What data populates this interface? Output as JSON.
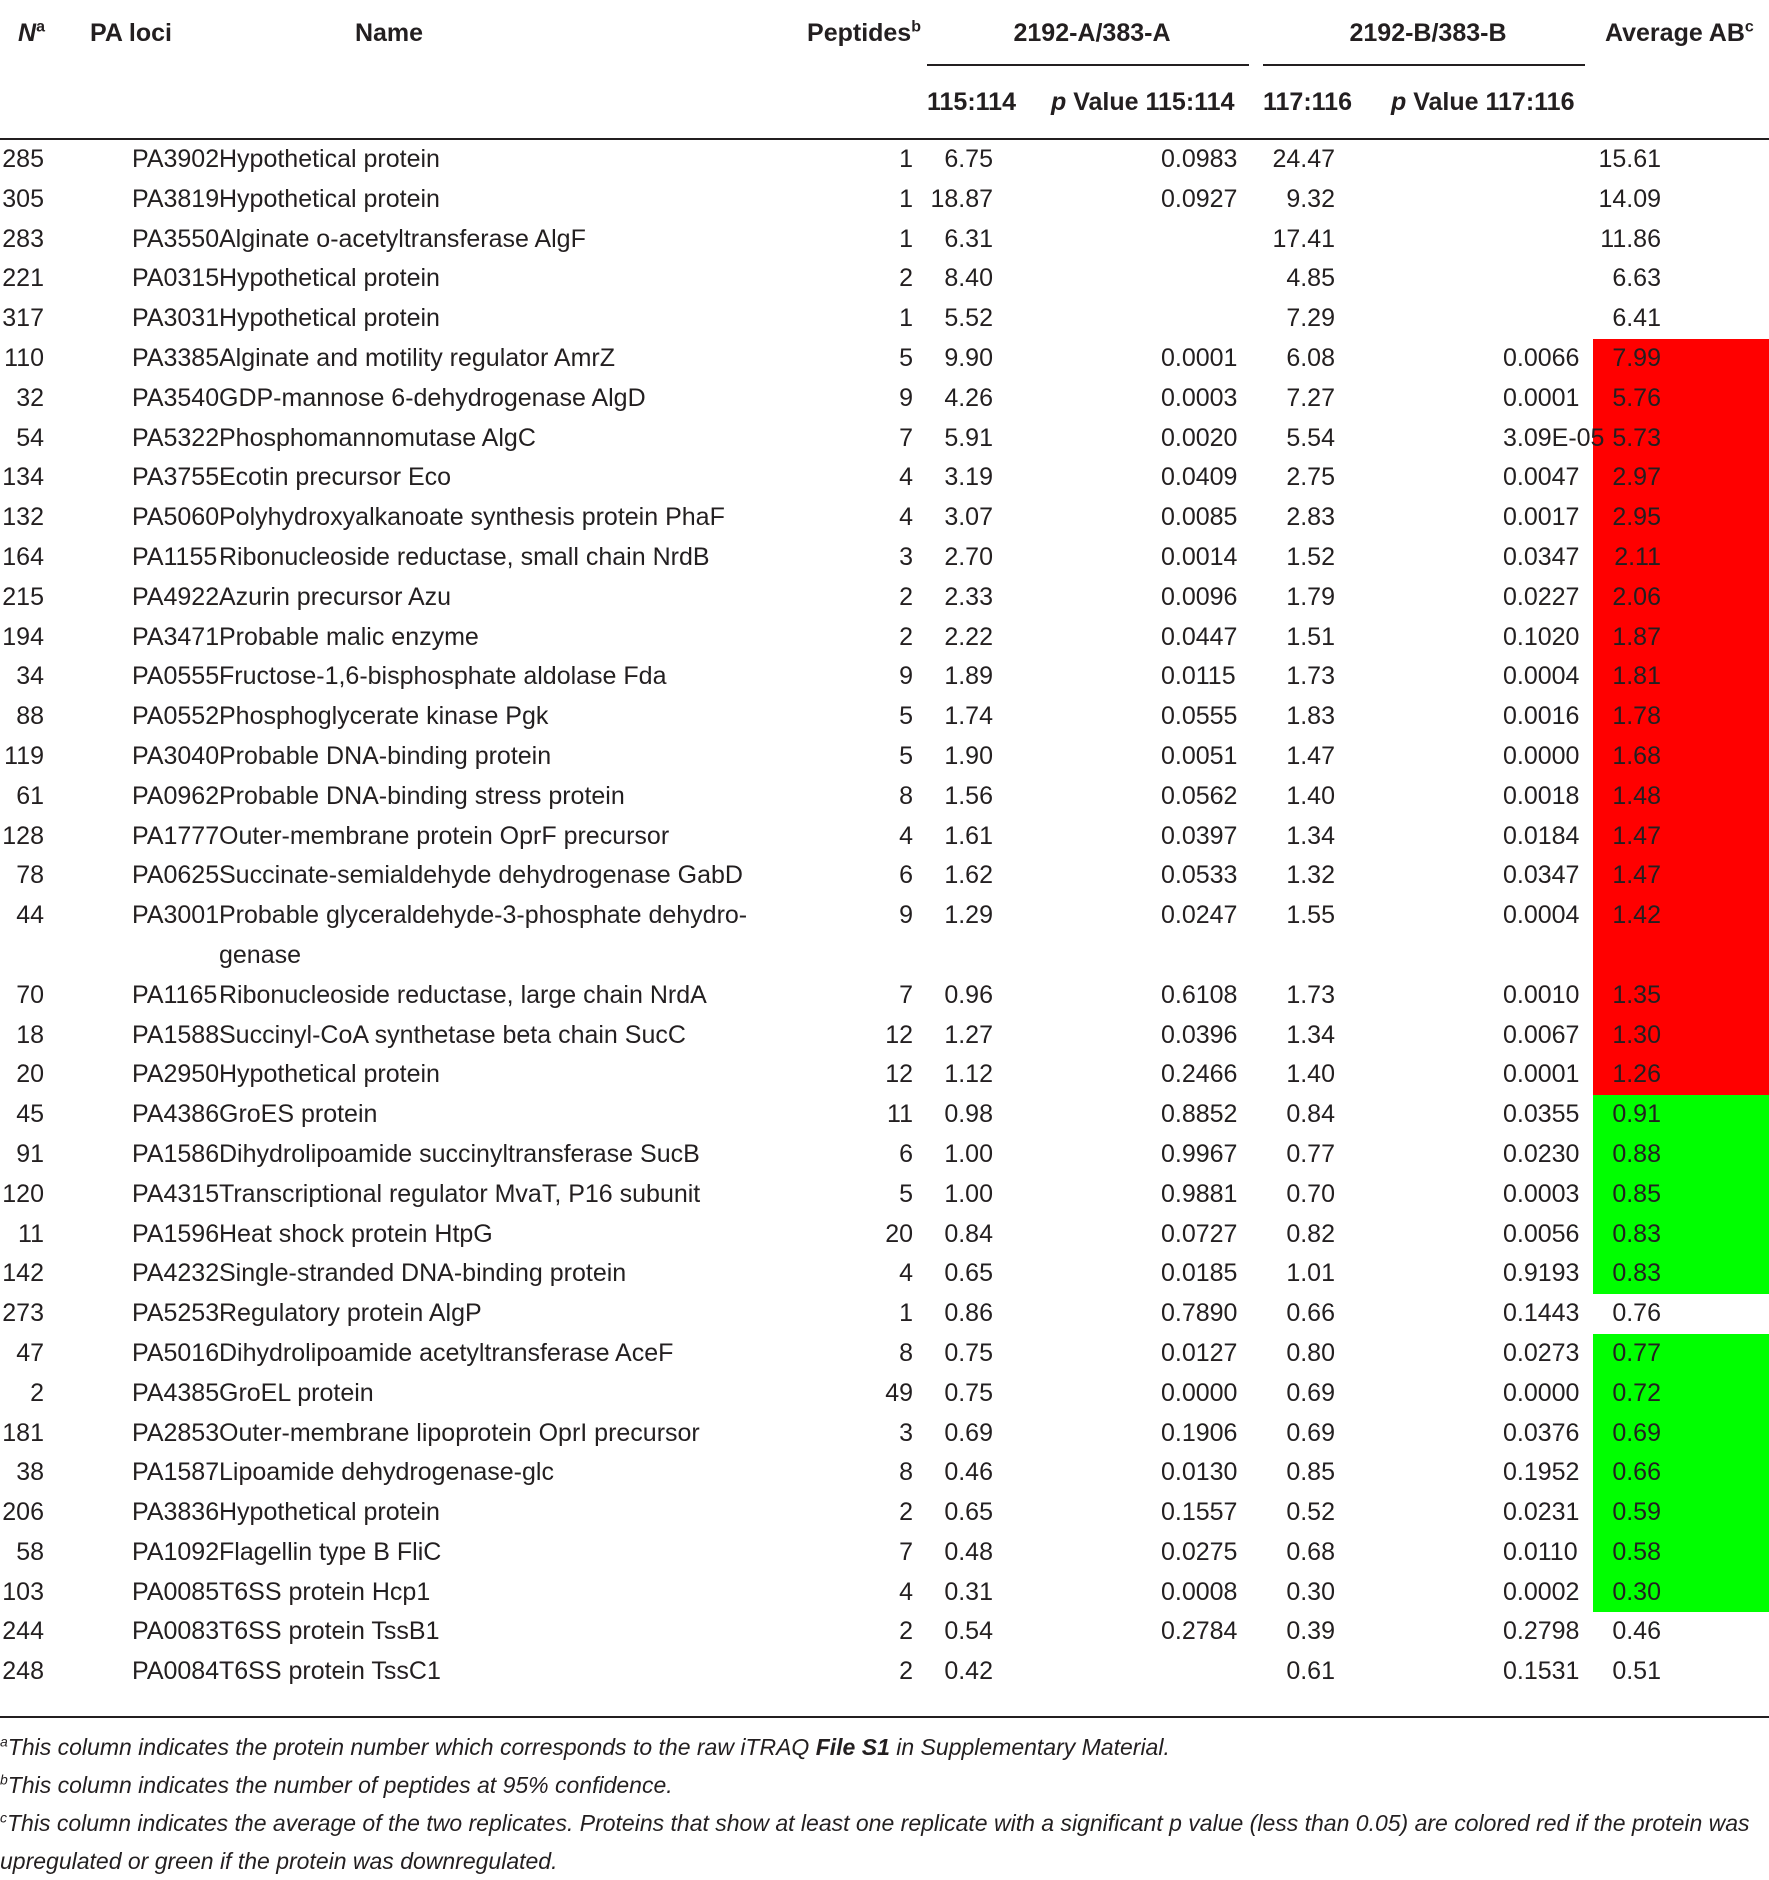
{
  "header": {
    "n": "N",
    "n_sup": "a",
    "loci": "PA loci",
    "name": "Name",
    "peptides": "Peptides",
    "peptides_sup": "b",
    "group_a": "2192-A/383-A",
    "group_b": "2192-B/383-B",
    "avg": "Average AB",
    "avg_sup": "c",
    "ratio_a": "115:114",
    "p_italic": "p",
    "pval_a": "Value 115:114",
    "ratio_b": "117:116",
    "pval_b": "Value 117:116"
  },
  "rows": [
    {
      "n": "285",
      "loci": "PA3902",
      "name": "Hypothetical protein",
      "peptides": "1",
      "r_a": "6.75",
      "p_a": "0.0983",
      "r_b": "24.47",
      "p_b": "",
      "avg": "15.61",
      "color": ""
    },
    {
      "n": "305",
      "loci": "PA3819",
      "name": "Hypothetical protein",
      "peptides": "1",
      "r_a": "18.87",
      "p_a": "0.0927",
      "r_b": "9.32",
      "p_b": "",
      "avg": "14.09",
      "color": ""
    },
    {
      "n": "283",
      "loci": "PA3550",
      "name": "Alginate o-acetyltransferase AlgF",
      "peptides": "1",
      "r_a": "6.31",
      "p_a": "",
      "r_b": "17.41",
      "p_b": "",
      "avg": "11.86",
      "color": ""
    },
    {
      "n": "221",
      "loci": "PA0315",
      "name": "Hypothetical protein",
      "peptides": "2",
      "r_a": "8.40",
      "p_a": "",
      "r_b": "4.85",
      "p_b": "",
      "avg": "6.63",
      "color": ""
    },
    {
      "n": "317",
      "loci": "PA3031",
      "name": "Hypothetical protein",
      "peptides": "1",
      "r_a": "5.52",
      "p_a": "",
      "r_b": "7.29",
      "p_b": "",
      "avg": "6.41",
      "color": ""
    },
    {
      "n": "110",
      "loci": "PA3385",
      "name": "Alginate and motility regulator AmrZ",
      "peptides": "5",
      "r_a": "9.90",
      "p_a": "0.0001",
      "r_b": "6.08",
      "p_b": "0.0066",
      "avg": "7.99",
      "color": "up"
    },
    {
      "n": "32",
      "loci": "PA3540",
      "name": "GDP-mannose 6-dehydrogenase AlgD",
      "peptides": "9",
      "r_a": "4.26",
      "p_a": "0.0003",
      "r_b": "7.27",
      "p_b": "0.0001",
      "avg": "5.76",
      "color": "up"
    },
    {
      "n": "54",
      "loci": "PA5322",
      "name": "Phosphomannomutase AlgC",
      "peptides": "7",
      "r_a": "5.91",
      "p_a": "0.0020",
      "r_b": "5.54",
      "p_b": "3.09E-05",
      "avg": "5.73",
      "color": "up"
    },
    {
      "n": "134",
      "loci": "PA3755",
      "name": "Ecotin precursor Eco",
      "peptides": "4",
      "r_a": "3.19",
      "p_a": "0.0409",
      "r_b": "2.75",
      "p_b": "0.0047",
      "avg": "2.97",
      "color": "up"
    },
    {
      "n": "132",
      "loci": "PA5060",
      "name": "Polyhydroxyalkanoate synthesis protein PhaF",
      "peptides": "4",
      "r_a": "3.07",
      "p_a": "0.0085",
      "r_b": "2.83",
      "p_b": "0.0017",
      "avg": "2.95",
      "color": "up"
    },
    {
      "n": "164",
      "loci": "PA1155",
      "name": "Ribonucleoside reductase, small chain NrdB",
      "peptides": "3",
      "r_a": "2.70",
      "p_a": "0.0014",
      "r_b": "1.52",
      "p_b": "0.0347",
      "avg": "2.11",
      "color": "up"
    },
    {
      "n": "215",
      "loci": "PA4922",
      "name": "Azurin precursor Azu",
      "peptides": "2",
      "r_a": "2.33",
      "p_a": "0.0096",
      "r_b": "1.79",
      "p_b": "0.0227",
      "avg": "2.06",
      "color": "up"
    },
    {
      "n": "194",
      "loci": "PA3471",
      "name": "Probable malic enzyme",
      "peptides": "2",
      "r_a": "2.22",
      "p_a": "0.0447",
      "r_b": "1.51",
      "p_b": "0.1020",
      "avg": "1.87",
      "color": "up"
    },
    {
      "n": "34",
      "loci": "PA0555",
      "name": "Fructose-1,6-bisphosphate aldolase Fda",
      "peptides": "9",
      "r_a": "1.89",
      "p_a": "0.0115",
      "r_b": "1.73",
      "p_b": "0.0004",
      "avg": "1.81",
      "color": "up"
    },
    {
      "n": "88",
      "loci": "PA0552",
      "name": "Phosphoglycerate kinase Pgk",
      "peptides": "5",
      "r_a": "1.74",
      "p_a": "0.0555",
      "r_b": "1.83",
      "p_b": "0.0016",
      "avg": "1.78",
      "color": "up"
    },
    {
      "n": "119",
      "loci": "PA3040",
      "name": "Probable DNA-binding protein",
      "peptides": "5",
      "r_a": "1.90",
      "p_a": "0.0051",
      "r_b": "1.47",
      "p_b": "0.0000",
      "avg": "1.68",
      "color": "up"
    },
    {
      "n": "61",
      "loci": "PA0962",
      "name": "Probable DNA-binding stress protein",
      "peptides": "8",
      "r_a": "1.56",
      "p_a": "0.0562",
      "r_b": "1.40",
      "p_b": "0.0018",
      "avg": "1.48",
      "color": "up"
    },
    {
      "n": "128",
      "loci": "PA1777",
      "name": "Outer-membrane protein OprF precursor",
      "peptides": "4",
      "r_a": "1.61",
      "p_a": "0.0397",
      "r_b": "1.34",
      "p_b": "0.0184",
      "avg": "1.47",
      "color": "up"
    },
    {
      "n": "78",
      "loci": "PA0625",
      "name": "Succinate-semialdehyde dehydrogenase GabD",
      "peptides": "6",
      "r_a": "1.62",
      "p_a": "0.0533",
      "r_b": "1.32",
      "p_b": "0.0347",
      "avg": "1.47",
      "color": "up"
    },
    {
      "n": "44",
      "loci": "PA3001",
      "name": "Probable glyceraldehyde-3-phosphate dehydro-genase",
      "peptides": "9",
      "r_a": "1.29",
      "p_a": "0.0247",
      "r_b": "1.55",
      "p_b": "0.0004",
      "avg": "1.42",
      "color": "up",
      "wrap": true
    },
    {
      "n": "70",
      "loci": "PA1165",
      "name": "Ribonucleoside reductase, large chain NrdA",
      "peptides": "7",
      "r_a": "0.96",
      "p_a": "0.6108",
      "r_b": "1.73",
      "p_b": "0.0010",
      "avg": "1.35",
      "color": "up"
    },
    {
      "n": "18",
      "loci": "PA1588",
      "name": "Succinyl-CoA synthetase beta chain SucC",
      "peptides": "12",
      "r_a": "1.27",
      "p_a": "0.0396",
      "r_b": "1.34",
      "p_b": "0.0067",
      "avg": "1.30",
      "color": "up"
    },
    {
      "n": "20",
      "loci": "PA2950",
      "name": "Hypothetical protein",
      "peptides": "12",
      "r_a": "1.12",
      "p_a": "0.2466",
      "r_b": "1.40",
      "p_b": "0.0001",
      "avg": "1.26",
      "color": "up"
    },
    {
      "n": "45",
      "loci": "PA4386",
      "name": "GroES protein",
      "peptides": "11",
      "r_a": "0.98",
      "p_a": "0.8852",
      "r_b": "0.84",
      "p_b": "0.0355",
      "avg": "0.91",
      "color": "down"
    },
    {
      "n": "91",
      "loci": "PA1586",
      "name": "Dihydrolipoamide succinyltransferase SucB",
      "peptides": "6",
      "r_a": "1.00",
      "p_a": "0.9967",
      "r_b": "0.77",
      "p_b": "0.0230",
      "avg": "0.88",
      "color": "down"
    },
    {
      "n": "120",
      "loci": "PA4315",
      "name": "Transcriptional regulator MvaT, P16 subunit",
      "peptides": "5",
      "r_a": "1.00",
      "p_a": "0.9881",
      "r_b": "0.70",
      "p_b": "0.0003",
      "avg": "0.85",
      "color": "down"
    },
    {
      "n": "11",
      "loci": "PA1596",
      "name": "Heat shock protein HtpG",
      "peptides": "20",
      "r_a": "0.84",
      "p_a": "0.0727",
      "r_b": "0.82",
      "p_b": "0.0056",
      "avg": "0.83",
      "color": "down"
    },
    {
      "n": "142",
      "loci": "PA4232",
      "name": "Single-stranded DNA-binding protein",
      "peptides": "4",
      "r_a": "0.65",
      "p_a": "0.0185",
      "r_b": "1.01",
      "p_b": "0.9193",
      "avg": "0.83",
      "color": "down"
    },
    {
      "n": "273",
      "loci": "PA5253",
      "name": "Regulatory protein AlgP",
      "peptides": "1",
      "r_a": "0.86",
      "p_a": "0.7890",
      "r_b": "0.66",
      "p_b": "0.1443",
      "avg": "0.76",
      "color": ""
    },
    {
      "n": "47",
      "loci": "PA5016",
      "name": "Dihydrolipoamide acetyltransferase AceF",
      "peptides": "8",
      "r_a": "0.75",
      "p_a": "0.0127",
      "r_b": "0.80",
      "p_b": "0.0273",
      "avg": "0.77",
      "color": "down"
    },
    {
      "n": "2",
      "loci": "PA4385",
      "name": "GroEL protein",
      "peptides": "49",
      "r_a": "0.75",
      "p_a": "0.0000",
      "r_b": "0.69",
      "p_b": "0.0000",
      "avg": "0.72",
      "color": "down"
    },
    {
      "n": "181",
      "loci": "PA2853",
      "name": "Outer-membrane lipoprotein OprI precursor",
      "peptides": "3",
      "r_a": "0.69",
      "p_a": "0.1906",
      "r_b": "0.69",
      "p_b": "0.0376",
      "avg": "0.69",
      "color": "down"
    },
    {
      "n": "38",
      "loci": "PA1587",
      "name": "Lipoamide dehydrogenase-glc",
      "peptides": "8",
      "r_a": "0.46",
      "p_a": "0.0130",
      "r_b": "0.85",
      "p_b": "0.1952",
      "avg": "0.66",
      "color": "down"
    },
    {
      "n": "206",
      "loci": "PA3836",
      "name": "Hypothetical protein",
      "peptides": "2",
      "r_a": "0.65",
      "p_a": "0.1557",
      "r_b": "0.52",
      "p_b": "0.0231",
      "avg": "0.59",
      "color": "down"
    },
    {
      "n": "58",
      "loci": "PA1092",
      "name": "Flagellin type B FliC",
      "peptides": "7",
      "r_a": "0.48",
      "p_a": "0.0275",
      "r_b": "0.68",
      "p_b": "0.0110",
      "avg": "0.58",
      "color": "down"
    },
    {
      "n": "103",
      "loci": "PA0085",
      "name": "T6SS protein Hcp1",
      "peptides": "4",
      "r_a": "0.31",
      "p_a": "0.0008",
      "r_b": "0.30",
      "p_b": "0.0002",
      "avg": "0.30",
      "color": "down"
    },
    {
      "n": "244",
      "loci": "PA0083",
      "name": "T6SS protein TssB1",
      "peptides": "2",
      "r_a": "0.54",
      "p_a": "0.2784",
      "r_b": "0.39",
      "p_b": "0.2798",
      "avg": "0.46",
      "color": ""
    },
    {
      "n": "248",
      "loci": "PA0084",
      "name": "T6SS protein TssC1",
      "peptides": "2",
      "r_a": "0.42",
      "p_a": "",
      "r_b": "0.61",
      "p_b": "0.1531",
      "avg": "0.51",
      "color": ""
    }
  ],
  "footnotes": {
    "a_sup": "a",
    "a_pre": "This column indicates the protein number which corresponds to the raw iTRAQ ",
    "a_bold": "File S1",
    "a_post": " in Supplementary Material.",
    "b_sup": "b",
    "b_text": "This column indicates the number of peptides at 95% confidence.",
    "c_sup": "c",
    "c_text": "This column indicates the average of the two replicates. Proteins that show at least one replicate with a significant p value (less than 0.05) are colored red if the protein was upregulated or green if the protein was downregulated."
  },
  "colors": {
    "up": "#ff0000",
    "down": "#00ff00",
    "rule": "#231f20"
  }
}
